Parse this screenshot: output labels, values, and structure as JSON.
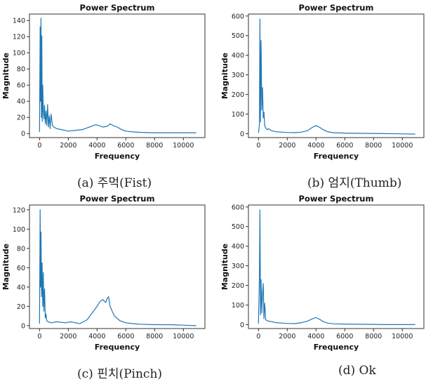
{
  "captions": {
    "a": "(a) 주먹(Fist)",
    "b": "(b) 엄지(Thumb)",
    "c": "(c) 핀치(Pinch)",
    "d": "(d) Ok"
  },
  "colors": {
    "line": "#1f77b4",
    "axis": "#333333"
  },
  "chart_data": [
    {
      "id": "a",
      "type": "line",
      "title": "Power Spectrum",
      "xlabel": "Frequency",
      "ylabel": "Magnitude",
      "xlim": [
        -700,
        11500
      ],
      "ylim": [
        -5,
        148
      ],
      "xticks": [
        0,
        2000,
        4000,
        6000,
        8000,
        10000
      ],
      "yticks": [
        0,
        20,
        40,
        60,
        80,
        100,
        120,
        140
      ],
      "series": [
        {
          "x": [
            0,
            40,
            70,
            100,
            130,
            160,
            190,
            220,
            260,
            300,
            350,
            400,
            450,
            500,
            560,
            620,
            680,
            740,
            800,
            900,
            1000,
            1200,
            1500,
            2000,
            2500,
            3000,
            3300,
            3600,
            3900,
            4100,
            4400,
            4700,
            4900,
            5100,
            5400,
            5700,
            6000,
            6500,
            7000,
            8000,
            9000,
            10000,
            10900
          ],
          "y": [
            2,
            132,
            40,
            143,
            20,
            121,
            15,
            60,
            30,
            18,
            35,
            12,
            28,
            10,
            36,
            8,
            22,
            6,
            24,
            10,
            8,
            6,
            5,
            3,
            4,
            5,
            7,
            9,
            11,
            10,
            8,
            9,
            12,
            10,
            8,
            5,
            3,
            2,
            1.5,
            1,
            1,
            1,
            1
          ]
        }
      ]
    },
    {
      "id": "b",
      "type": "line",
      "title": "Power Spectrum",
      "xlabel": "Frequency",
      "ylabel": "Magnitude",
      "xlim": [
        -700,
        11500
      ],
      "ylim": [
        -20,
        610
      ],
      "xticks": [
        0,
        2000,
        4000,
        6000,
        8000,
        10000
      ],
      "yticks": [
        0,
        100,
        200,
        300,
        400,
        500,
        600
      ],
      "series": [
        {
          "x": [
            0,
            60,
            100,
            140,
            180,
            230,
            280,
            330,
            380,
            430,
            500,
            600,
            700,
            900,
            1200,
            1600,
            2000,
            2500,
            3000,
            3400,
            3700,
            3900,
            4000,
            4100,
            4300,
            4500,
            4800,
            5200,
            6000,
            7000,
            8000,
            9000,
            10000,
            10900
          ],
          "y": [
            5,
            40,
            585,
            60,
            475,
            120,
            235,
            80,
            110,
            40,
            30,
            20,
            25,
            15,
            10,
            8,
            6,
            5,
            8,
            15,
            30,
            38,
            42,
            38,
            30,
            20,
            10,
            5,
            3,
            2,
            1,
            0,
            -1,
            -2
          ]
        }
      ]
    },
    {
      "id": "c",
      "type": "line",
      "title": "Power Spectrum",
      "xlabel": "Frequency",
      "ylabel": "Magnitude",
      "xlim": [
        -700,
        11500
      ],
      "ylim": [
        -3,
        125
      ],
      "xticks": [
        0,
        2000,
        4000,
        6000,
        8000,
        10000
      ],
      "yticks": [
        0,
        20,
        40,
        60,
        80,
        100,
        120
      ],
      "series": [
        {
          "x": [
            0,
            40,
            70,
            100,
            140,
            180,
            220,
            260,
            300,
            350,
            400,
            450,
            500,
            600,
            800,
            1200,
            1800,
            2200,
            2800,
            3300,
            3700,
            4000,
            4200,
            4400,
            4600,
            4700,
            4800,
            4900,
            5200,
            5600,
            6000,
            6500,
            7000,
            8000,
            9000,
            10000,
            10900
          ],
          "y": [
            2,
            120,
            40,
            97,
            30,
            65,
            20,
            55,
            15,
            38,
            8,
            12,
            5,
            4,
            3,
            4,
            3,
            4,
            2,
            6,
            14,
            20,
            25,
            27,
            24,
            28,
            30,
            20,
            10,
            5,
            3,
            2,
            1.5,
            1,
            1,
            0.5,
            0
          ]
        }
      ]
    },
    {
      "id": "d",
      "type": "line",
      "title": "Power Spectrum",
      "xlabel": "Frequency",
      "ylabel": "Magnitude",
      "xlim": [
        -700,
        11500
      ],
      "ylim": [
        -20,
        610
      ],
      "xticks": [
        0,
        2000,
        4000,
        6000,
        8000,
        10000
      ],
      "yticks": [
        0,
        100,
        200,
        300,
        400,
        500,
        600
      ],
      "series": [
        {
          "x": [
            0,
            60,
            100,
            140,
            180,
            230,
            280,
            330,
            380,
            430,
            500,
            600,
            700,
            900,
            1200,
            1600,
            2000,
            2500,
            3000,
            3400,
            3700,
            3900,
            4000,
            4100,
            4300,
            4500,
            4800,
            5200,
            6000,
            7000,
            8000,
            9000,
            10000,
            10900
          ],
          "y": [
            5,
            230,
            585,
            50,
            230,
            60,
            160,
            210,
            30,
            110,
            25,
            20,
            18,
            15,
            10,
            8,
            6,
            5,
            10,
            18,
            28,
            34,
            36,
            32,
            25,
            15,
            8,
            4,
            3,
            2,
            1,
            0,
            0,
            0
          ]
        }
      ]
    }
  ]
}
